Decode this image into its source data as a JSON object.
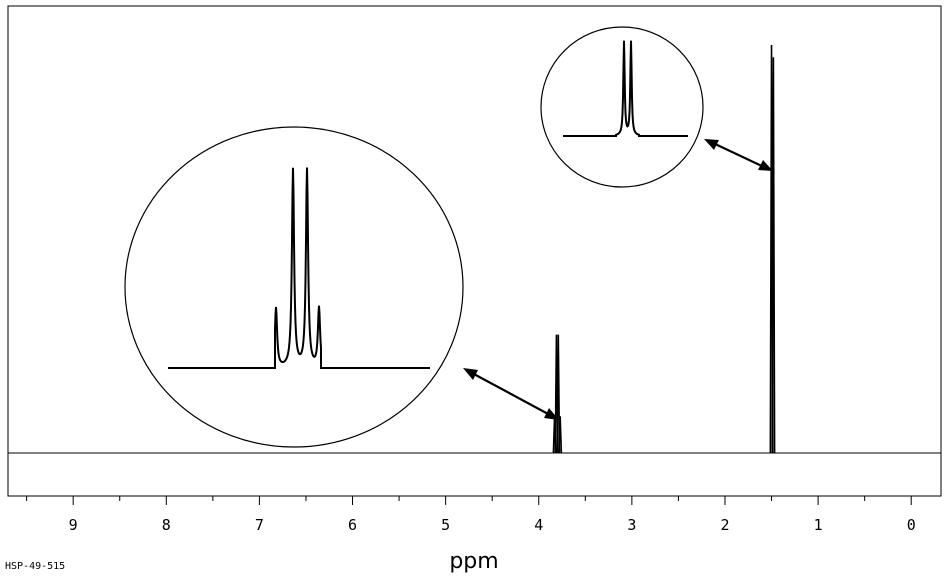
{
  "chart_data": {
    "type": "line",
    "title": "",
    "xlabel": "ppm",
    "ylabel": "",
    "xlim": [
      9.7,
      -0.32
    ],
    "x_reversed": true,
    "ylim": [
      0,
      1
    ],
    "grid": false,
    "legend": "none",
    "tick_labels": [
      "9",
      "8",
      "7",
      "6",
      "5",
      "4",
      "3",
      "2",
      "1",
      "0"
    ],
    "tick_values": [
      9,
      8,
      7,
      6,
      5,
      4,
      3,
      2,
      1,
      0
    ],
    "sample_code": "HSP-49-515",
    "peaks": [
      {
        "name": "quartet",
        "center_ppm": 3.8,
        "lines_ppm": [
          3.83,
          3.81,
          3.79,
          3.77
        ],
        "heights": [
          0.09,
          0.29,
          0.29,
          0.09
        ]
      },
      {
        "name": "doublet",
        "center_ppm": 1.49,
        "lines_ppm": [
          1.5,
          1.48
        ],
        "heights": [
          1.0,
          0.97
        ]
      }
    ],
    "insets": [
      {
        "name": "quartet-expansion",
        "points_to_ppm": 3.8,
        "relative_heights": [
          0.3,
          1.0,
          1.0,
          0.3
        ]
      },
      {
        "name": "doublet-expansion",
        "points_to_ppm": 1.49,
        "relative_heights": [
          1.0,
          1.0
        ]
      }
    ]
  },
  "colors": {
    "line": "#000000",
    "background": "#ffffff"
  }
}
